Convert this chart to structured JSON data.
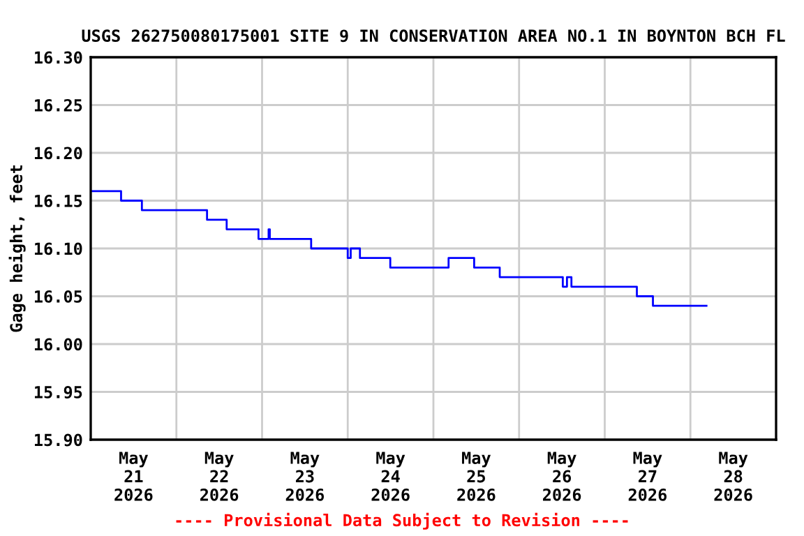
{
  "chart_data": {
    "type": "step",
    "title": "USGS 262750080175001 SITE 9 IN CONSERVATION AREA NO.1 IN BOYNTON BCH FL",
    "ylabel": "Gage height, feet",
    "annotations": [
      "---- Provisional Data Subject to Revision ----"
    ],
    "x": [
      "2026-05-21T00:00",
      "2026-05-21T08:30",
      "2026-05-21T14:20",
      "2026-05-22T08:35",
      "2026-05-22T14:05",
      "2026-05-22T23:00",
      "2026-05-23T01:50",
      "2026-05-23T02:10",
      "2026-05-23T13:45",
      "2026-05-24T00:00",
      "2026-05-24T00:50",
      "2026-05-24T03:25",
      "2026-05-24T11:55",
      "2026-05-25T04:15",
      "2026-05-25T11:25",
      "2026-05-25T18:35",
      "2026-05-26T12:15",
      "2026-05-26T13:25",
      "2026-05-26T14:40",
      "2026-05-27T09:00",
      "2026-05-27T13:30",
      "2026-05-28T04:30"
    ],
    "series": [
      {
        "color": "#0000ff",
        "values": [
          16.16,
          16.15,
          16.14,
          16.13,
          16.12,
          16.11,
          16.12,
          16.11,
          16.1,
          16.09,
          16.1,
          16.09,
          16.08,
          16.09,
          16.08,
          16.07,
          16.06,
          16.07,
          16.06,
          16.05,
          16.04,
          16.04
        ]
      }
    ],
    "xlim": [
      "2026-05-21T00:00",
      "2026-05-29T00:00"
    ],
    "xticks": [
      {
        "value": "2026-05-21T12:00",
        "label": "May\n21\n2026"
      },
      {
        "value": "2026-05-22T00:00",
        "label": null
      },
      {
        "value": "2026-05-22T12:00",
        "label": "May\n22\n2026"
      },
      {
        "value": "2026-05-23T00:00",
        "label": null
      },
      {
        "value": "2026-05-23T12:00",
        "label": "May\n23\n2026"
      },
      {
        "value": "2026-05-24T00:00",
        "label": null
      },
      {
        "value": "2026-05-24T12:00",
        "label": "May\n24\n2026"
      },
      {
        "value": "2026-05-25T00:00",
        "label": null
      },
      {
        "value": "2026-05-25T12:00",
        "label": "May\n25\n2026"
      },
      {
        "value": "2026-05-26T00:00",
        "label": null
      },
      {
        "value": "2026-05-26T12:00",
        "label": "May\n26\n2026"
      },
      {
        "value": "2026-05-27T00:00",
        "label": null
      },
      {
        "value": "2026-05-27T12:00",
        "label": "May\n27\n2026"
      },
      {
        "value": "2026-05-28T00:00",
        "label": null
      },
      {
        "value": "2026-05-28T12:00",
        "label": "May\n28\n2026"
      }
    ],
    "ylim": [
      15.9,
      16.3
    ],
    "yticks": [
      {
        "value": 15.9,
        "label": "15.90"
      },
      {
        "value": 15.95,
        "label": "15.95"
      },
      {
        "value": 16.0,
        "label": "16.00"
      },
      {
        "value": 16.05,
        "label": "16.05"
      },
      {
        "value": 16.1,
        "label": "16.10"
      },
      {
        "value": 16.15,
        "label": "16.15"
      },
      {
        "value": 16.2,
        "label": "16.20"
      },
      {
        "value": 16.25,
        "label": "16.25"
      },
      {
        "value": 16.3,
        "label": "16.30"
      }
    ],
    "grid": true
  }
}
